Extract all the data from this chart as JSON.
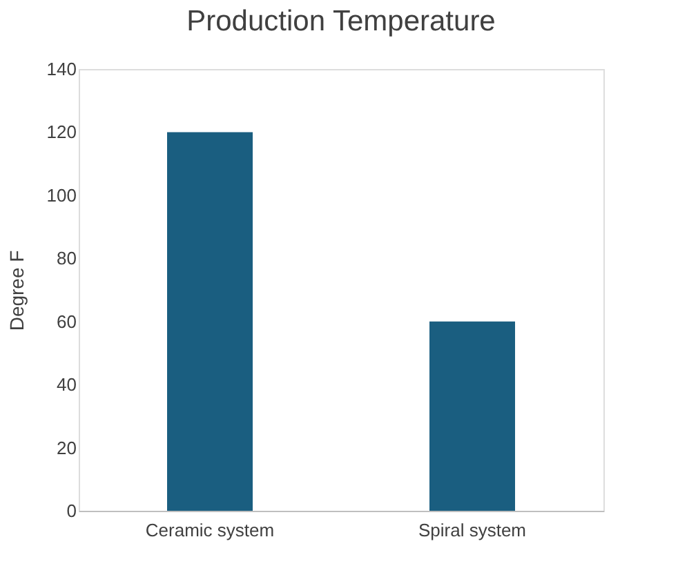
{
  "chart_data": {
    "type": "bar",
    "title": "Production Temperature",
    "ylabel": "Degree F",
    "categories": [
      "Ceramic system",
      "Spiral system"
    ],
    "values": [
      120,
      60
    ],
    "color": "#1a5e80",
    "ylim": [
      0,
      140
    ],
    "yticks": [
      0,
      20,
      40,
      60,
      80,
      100,
      120,
      140
    ],
    "grid": false
  }
}
